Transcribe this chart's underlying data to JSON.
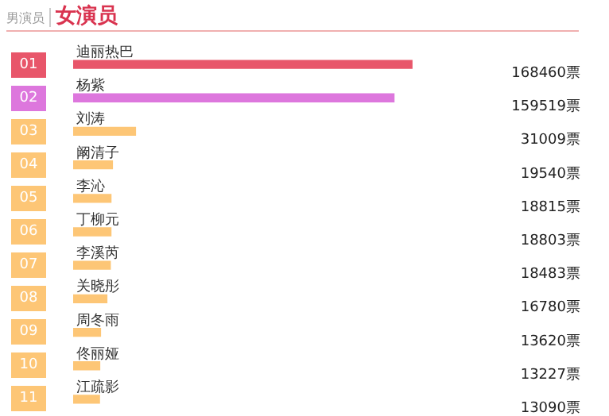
{
  "chart_data": {
    "type": "bar",
    "orientation": "horizontal",
    "title": "女演员",
    "subtitle": "男演员",
    "categories": [
      "迪丽热巴",
      "杨紫",
      "刘涛",
      "阚清子",
      "李沁",
      "丁柳元",
      "李溪芮",
      "关晓彤",
      "周冬雨",
      "佟丽娅",
      "江疏影"
    ],
    "values": [
      168460,
      159519,
      31009,
      19540,
      18815,
      18803,
      18483,
      16780,
      13620,
      13227,
      13090
    ],
    "value_labels": [
      "168460票",
      "159519票",
      "31009票",
      "19540票",
      "18815票",
      "18803票",
      "18483票",
      "16780票",
      "13620票",
      "13227票",
      "13090票"
    ],
    "colors": [
      "#e8566a",
      "#dd77dd",
      "#fdc676",
      "#fdc676",
      "#fdc676",
      "#fdc676",
      "#fdc676",
      "#fdc676",
      "#fdc676",
      "#fdc676",
      "#fdc676"
    ],
    "annotations": [
      "01",
      "02",
      "03",
      "04",
      "05",
      "06",
      "07",
      "08",
      "09",
      "10",
      "11"
    ],
    "legend": false
  }
}
